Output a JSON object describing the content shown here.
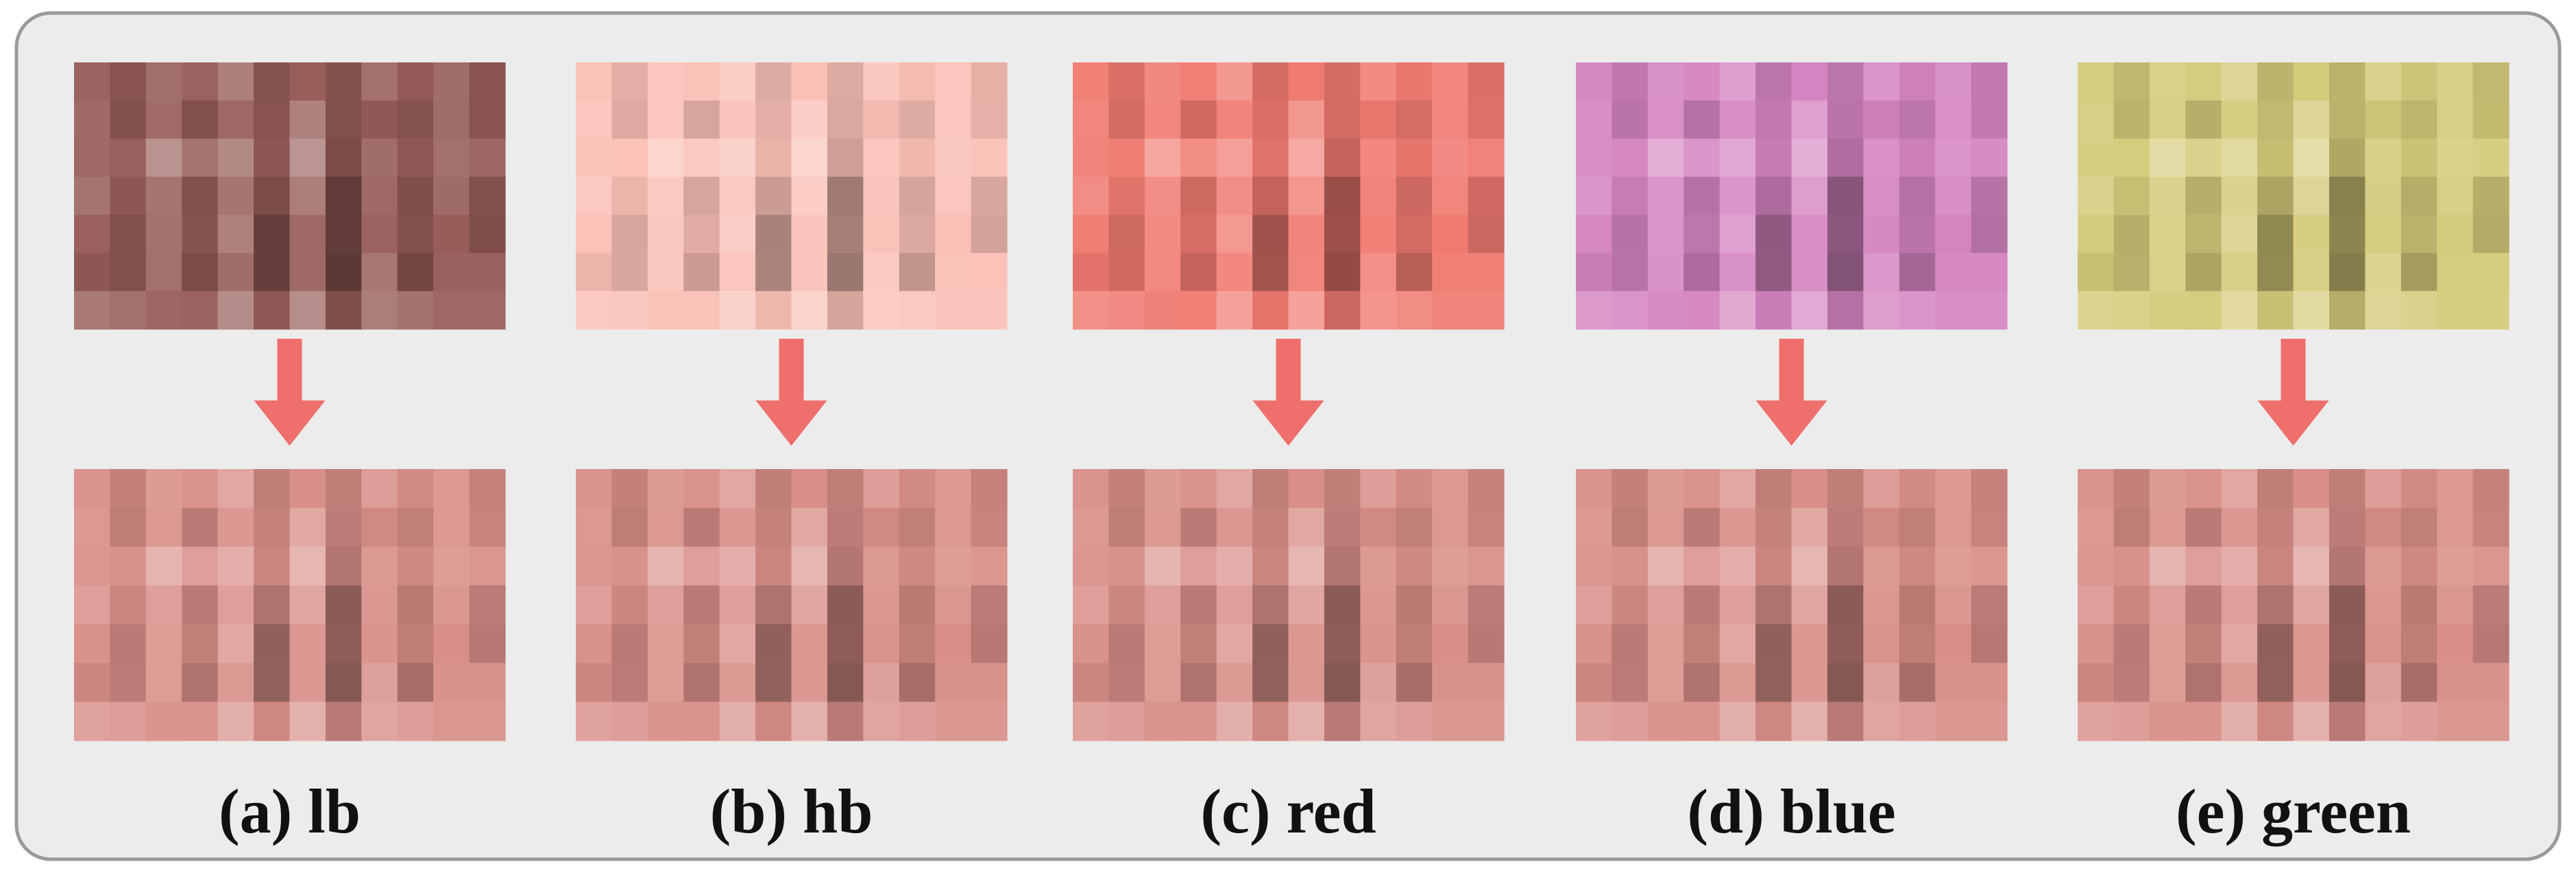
{
  "panels": [
    {
      "label": "(a) lb"
    },
    {
      "label": "(b) hb"
    },
    {
      "label": "(c) red"
    },
    {
      "label": "(d) blue"
    },
    {
      "label": "(e) green"
    }
  ]
}
